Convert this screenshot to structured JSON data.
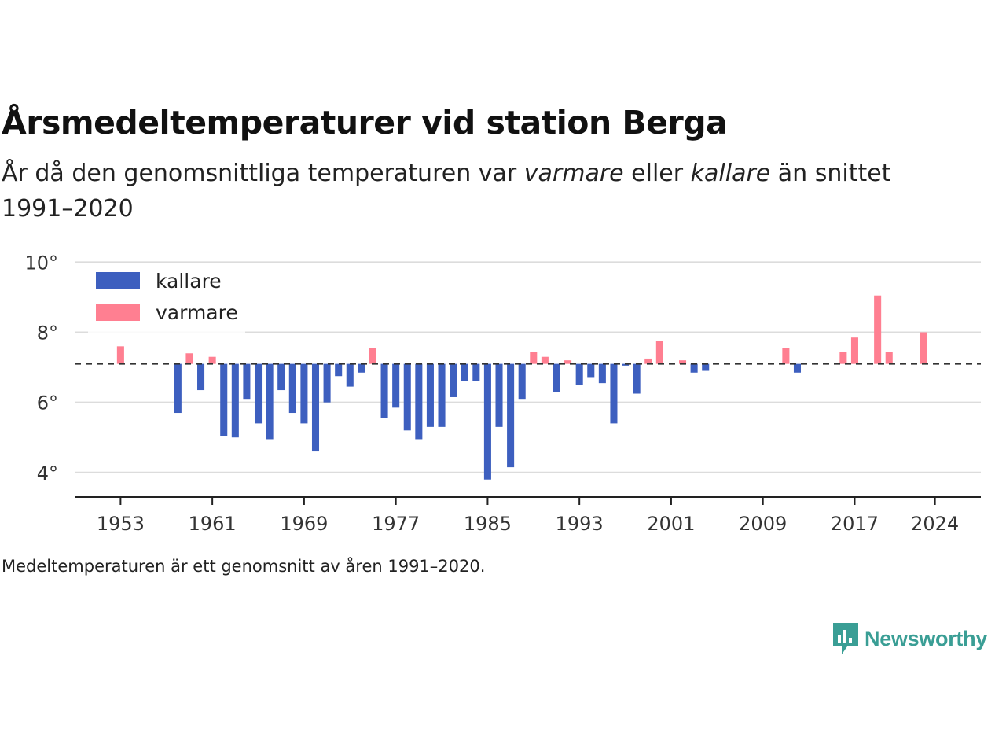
{
  "header": {
    "title": "Årsmedeltemperaturer vid station Berga",
    "subtitle_pre": "År då den genomsnittliga temperaturen var ",
    "subtitle_em1": "varmare",
    "subtitle_mid": " eller ",
    "subtitle_em2": "kallare",
    "subtitle_post": " än snittet 1991–2020"
  },
  "footnote": "Medeltemperaturen är ett genomsnitt av åren 1991–2020.",
  "brand": {
    "name": "Newsworthy",
    "icon": "newsworthy-logo-icon",
    "color": "#3a9e95"
  },
  "chart_data": {
    "type": "bar",
    "baseline": 7.1,
    "ylim": [
      3.3,
      10.3
    ],
    "yticks": [
      4,
      6,
      8,
      10
    ],
    "ytick_labels": [
      "4°",
      "6°",
      "8°",
      "10°"
    ],
    "xlim": [
      1949,
      2028
    ],
    "xticks": [
      1953,
      1961,
      1969,
      1977,
      1985,
      1993,
      2001,
      2009,
      2017,
      2024
    ],
    "xtick_labels": [
      "1953",
      "1961",
      "1969",
      "1977",
      "1985",
      "1993",
      "2001",
      "2009",
      "2017",
      "2024"
    ],
    "grid": true,
    "legend_position": "top-left",
    "colors": {
      "kallare": "#3d5fbf",
      "varmare": "#ff7f91"
    },
    "legend": [
      {
        "key": "kallare",
        "label": "kallare"
      },
      {
        "key": "varmare",
        "label": "varmare"
      }
    ],
    "x": [
      1953,
      1958,
      1959,
      1960,
      1961,
      1962,
      1963,
      1964,
      1965,
      1966,
      1967,
      1968,
      1969,
      1970,
      1971,
      1972,
      1973,
      1974,
      1975,
      1976,
      1977,
      1978,
      1979,
      1980,
      1981,
      1982,
      1983,
      1984,
      1985,
      1986,
      1987,
      1988,
      1989,
      1990,
      1991,
      1992,
      1993,
      1994,
      1995,
      1996,
      1997,
      1998,
      1999,
      2000,
      2002,
      2003,
      2004,
      2011,
      2012,
      2016,
      2017,
      2019,
      2020,
      2023
    ],
    "values": [
      7.6,
      5.7,
      7.4,
      6.35,
      7.3,
      5.05,
      5.0,
      6.1,
      5.4,
      4.95,
      6.35,
      5.7,
      5.4,
      4.6,
      6.0,
      6.75,
      6.45,
      6.85,
      7.55,
      5.55,
      5.85,
      5.2,
      4.95,
      5.3,
      5.3,
      6.15,
      6.6,
      6.6,
      3.8,
      5.3,
      4.15,
      6.1,
      7.45,
      7.3,
      6.3,
      7.2,
      6.5,
      6.7,
      6.55,
      5.4,
      7.05,
      6.25,
      7.25,
      7.75,
      7.2,
      6.85,
      6.9,
      7.55,
      6.85,
      7.45,
      7.85,
      9.05,
      7.45,
      8.0
    ]
  }
}
